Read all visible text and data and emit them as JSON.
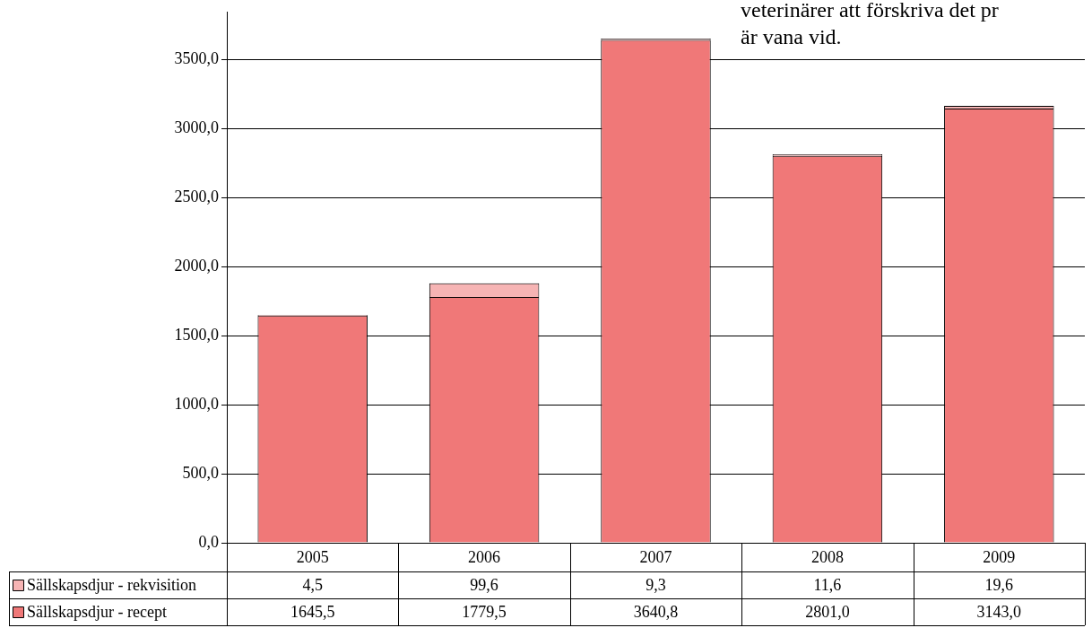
{
  "chart_data": {
    "type": "bar",
    "stacked": true,
    "categories": [
      "2005",
      "2006",
      "2007",
      "2008",
      "2009"
    ],
    "series": [
      {
        "name": "Sällskapsdjur - recept",
        "color": "#f07878",
        "values": [
          1645.5,
          1779.5,
          3640.8,
          2801.0,
          3143.0
        ],
        "value_labels": [
          "1645,5",
          "1779,5",
          "3640,8",
          "2801,0",
          "3143,0"
        ]
      },
      {
        "name": "Sällskapsdjur - rekvisition",
        "color": "#f6b4b4",
        "values": [
          4.5,
          99.6,
          9.3,
          11.6,
          19.6
        ],
        "value_labels": [
          "4,5",
          "99,6",
          "9,3",
          "11,6",
          "19,6"
        ]
      }
    ],
    "ylim": [
      0,
      3840
    ],
    "yticks": [
      {
        "value": 0,
        "label": "0,0"
      },
      {
        "value": 500,
        "label": "500,0"
      },
      {
        "value": 1000,
        "label": "1000,0"
      },
      {
        "value": 1500,
        "label": "1500,0"
      },
      {
        "value": 2000,
        "label": "2000,0"
      },
      {
        "value": 2500,
        "label": "2500,0"
      },
      {
        "value": 3000,
        "label": "3000,0"
      },
      {
        "value": 3500,
        "label": "3500,0"
      }
    ],
    "grid": "y",
    "legend": "bottom",
    "annotations": [
      "veterinärer att förskriva det pr\när vana vid."
    ]
  }
}
